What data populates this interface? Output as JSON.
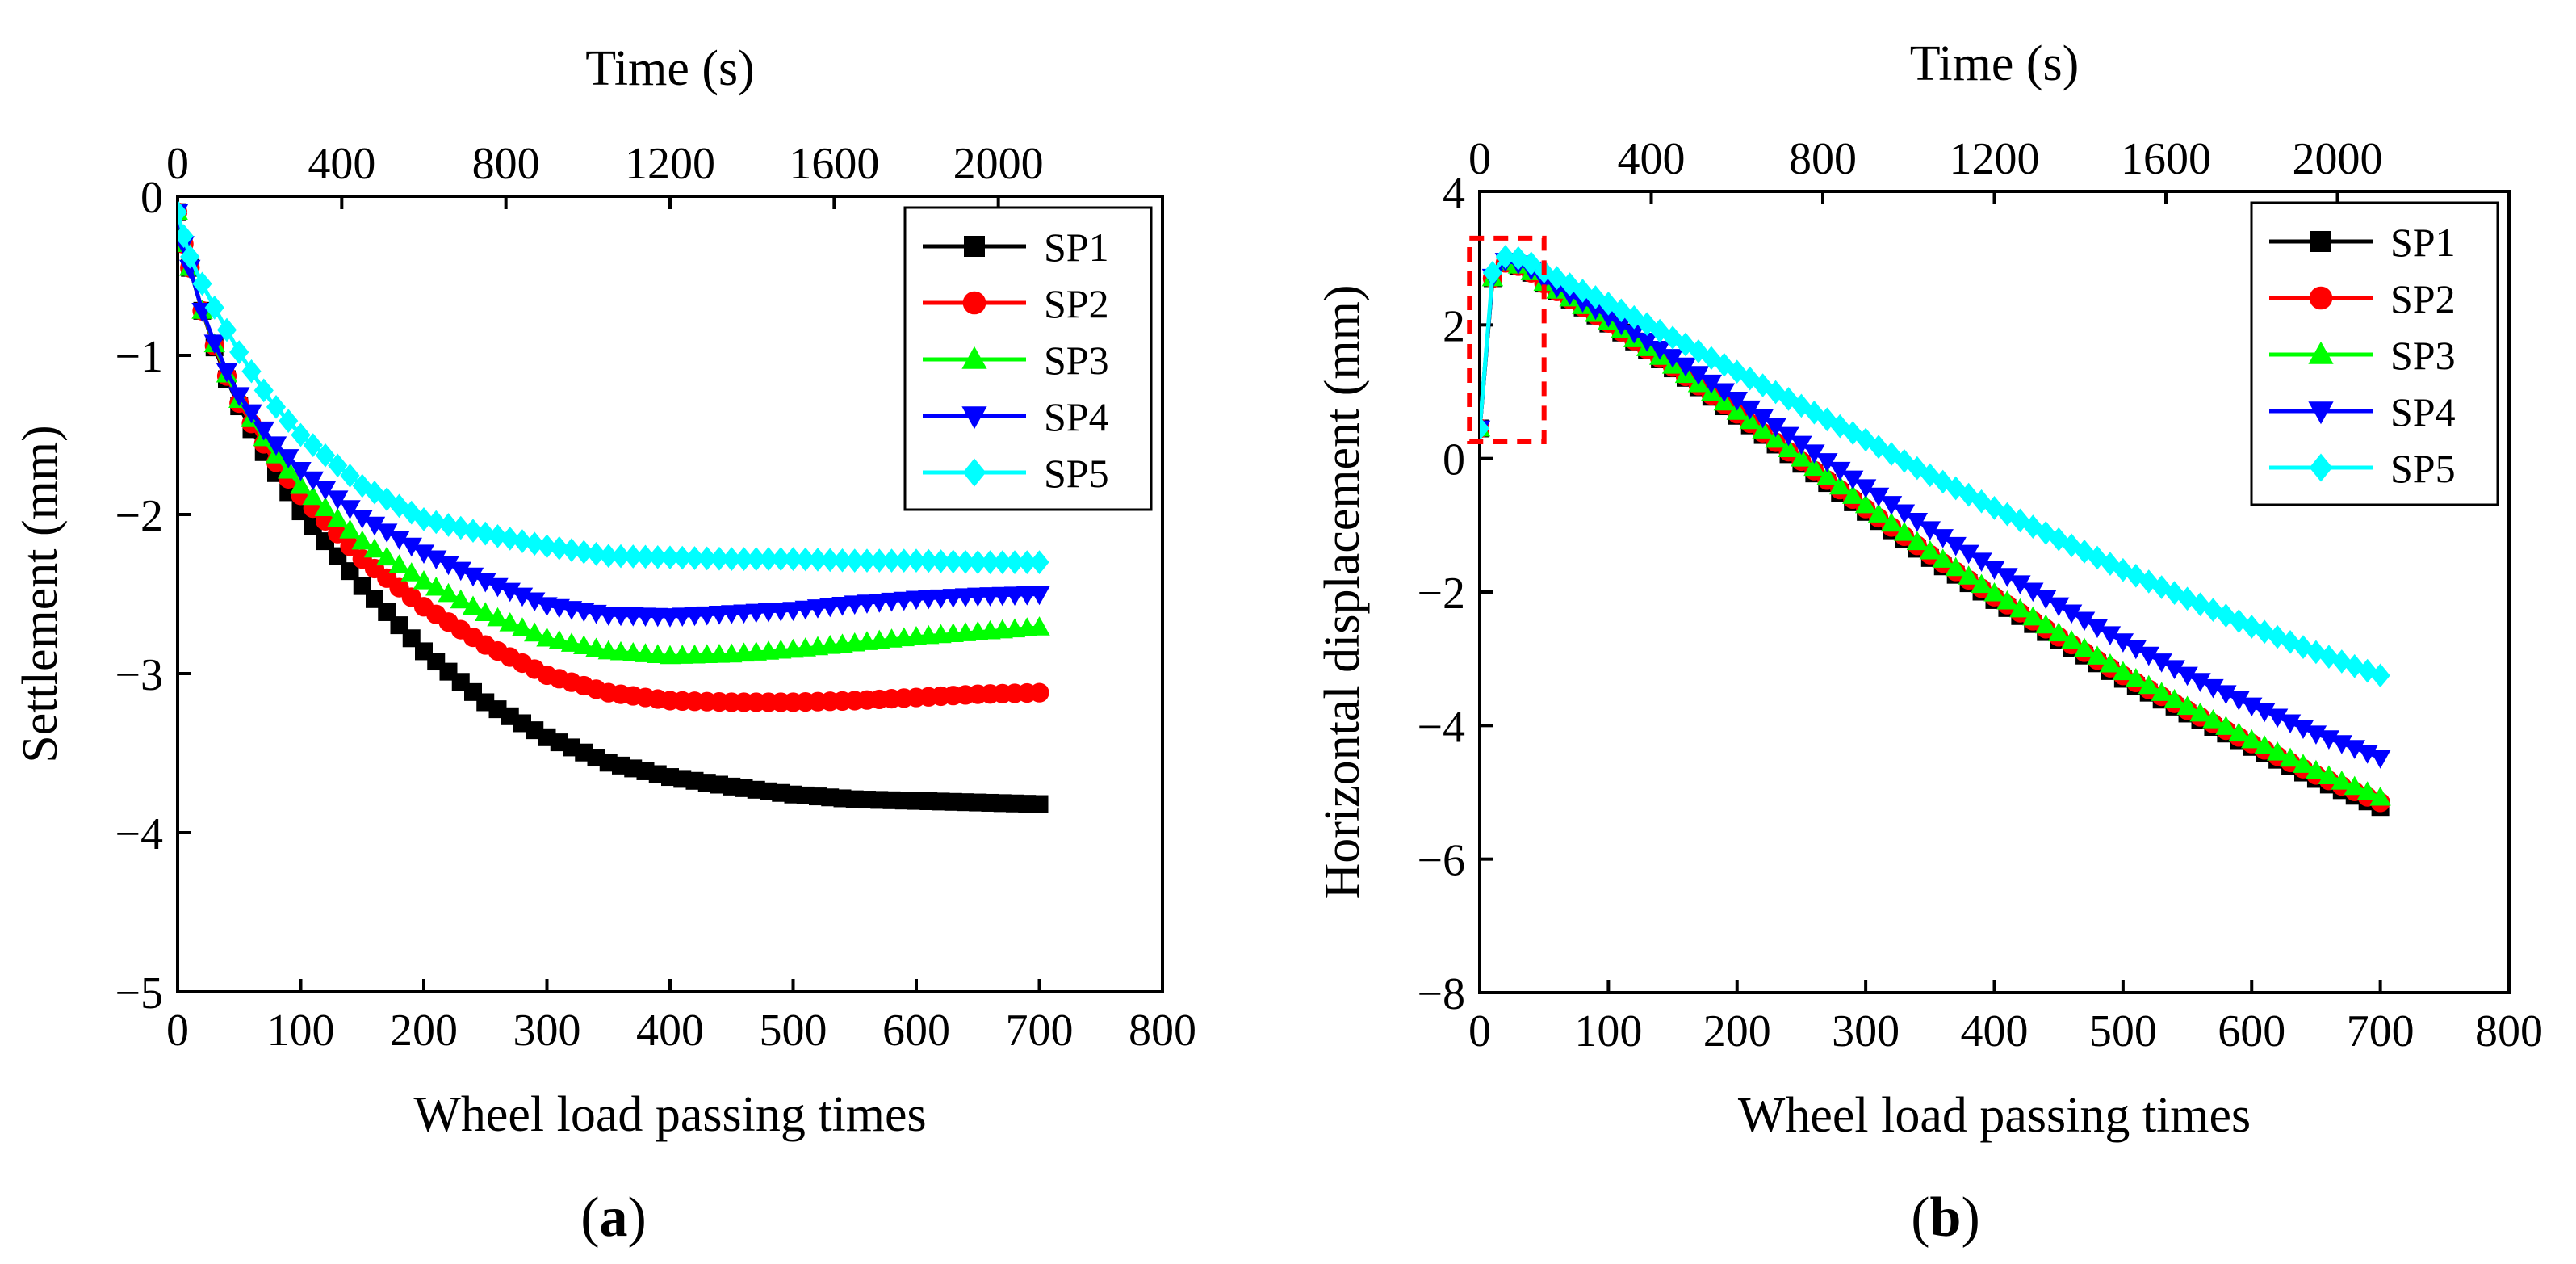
{
  "chart_data": [
    {
      "type": "line",
      "panel_label": "(a)",
      "panel_letter": "a",
      "xlabel": "Wheel load passing times",
      "ylabel": "Settlement (mm)",
      "x2label": "Time (s)",
      "xlim": [
        0,
        800
      ],
      "ylim": [
        -5,
        0
      ],
      "x2lim": [
        0,
        2400
      ],
      "xticks": [
        0,
        100,
        200,
        300,
        400,
        500,
        600,
        700,
        800
      ],
      "yticks": [
        0,
        -1,
        -2,
        -3,
        -4,
        -5
      ],
      "x2ticks": [
        0,
        400,
        800,
        1200,
        1600,
        2000
      ],
      "ytick_labels": [
        "0",
        "−1",
        "−2",
        "−3",
        "−4",
        "−5"
      ],
      "legend_position": "top-right",
      "grid": false,
      "series": [
        {
          "name": "SP1",
          "color": "#000000",
          "marker": "square",
          "points": [
            [
              0,
              -0.1
            ],
            [
              5,
              -0.3
            ],
            [
              10,
              -0.45
            ],
            [
              20,
              -0.72
            ],
            [
              30,
              -0.95
            ],
            [
              40,
              -1.15
            ],
            [
              50,
              -1.32
            ],
            [
              75,
              -1.68
            ],
            [
              100,
              -1.98
            ],
            [
              150,
              -2.45
            ],
            [
              200,
              -2.86
            ],
            [
              250,
              -3.18
            ],
            [
              300,
              -3.4
            ],
            [
              350,
              -3.56
            ],
            [
              400,
              -3.65
            ],
            [
              450,
              -3.71
            ],
            [
              500,
              -3.76
            ],
            [
              550,
              -3.79
            ],
            [
              600,
              -3.8
            ],
            [
              650,
              -3.81
            ],
            [
              700,
              -3.82
            ]
          ]
        },
        {
          "name": "SP2",
          "color": "#ff0000",
          "marker": "circle",
          "points": [
            [
              0,
              -0.1
            ],
            [
              5,
              -0.3
            ],
            [
              10,
              -0.45
            ],
            [
              20,
              -0.72
            ],
            [
              30,
              -0.94
            ],
            [
              40,
              -1.13
            ],
            [
              50,
              -1.3
            ],
            [
              75,
              -1.62
            ],
            [
              100,
              -1.88
            ],
            [
              150,
              -2.28
            ],
            [
              200,
              -2.58
            ],
            [
              250,
              -2.82
            ],
            [
              300,
              -3.01
            ],
            [
              350,
              -3.12
            ],
            [
              400,
              -3.17
            ],
            [
              450,
              -3.18
            ],
            [
              500,
              -3.18
            ],
            [
              550,
              -3.17
            ],
            [
              600,
              -3.15
            ],
            [
              650,
              -3.13
            ],
            [
              700,
              -3.12
            ]
          ]
        },
        {
          "name": "SP3",
          "color": "#00ff00",
          "marker": "triangle-up",
          "points": [
            [
              0,
              -0.1
            ],
            [
              5,
              -0.3
            ],
            [
              10,
              -0.45
            ],
            [
              20,
              -0.72
            ],
            [
              30,
              -0.93
            ],
            [
              40,
              -1.12
            ],
            [
              50,
              -1.28
            ],
            [
              75,
              -1.58
            ],
            [
              100,
              -1.82
            ],
            [
              150,
              -2.17
            ],
            [
              200,
              -2.42
            ],
            [
              250,
              -2.62
            ],
            [
              300,
              -2.78
            ],
            [
              350,
              -2.86
            ],
            [
              400,
              -2.89
            ],
            [
              450,
              -2.88
            ],
            [
              500,
              -2.85
            ],
            [
              550,
              -2.81
            ],
            [
              600,
              -2.77
            ],
            [
              650,
              -2.74
            ],
            [
              700,
              -2.71
            ]
          ]
        },
        {
          "name": "SP4",
          "color": "#0000ff",
          "marker": "triangle-down",
          "points": [
            [
              0,
              -0.1
            ],
            [
              5,
              -0.3
            ],
            [
              10,
              -0.45
            ],
            [
              20,
              -0.72
            ],
            [
              30,
              -0.92
            ],
            [
              40,
              -1.1
            ],
            [
              50,
              -1.25
            ],
            [
              75,
              -1.52
            ],
            [
              100,
              -1.72
            ],
            [
              150,
              -2.02
            ],
            [
              200,
              -2.24
            ],
            [
              250,
              -2.42
            ],
            [
              300,
              -2.57
            ],
            [
              350,
              -2.63
            ],
            [
              400,
              -2.64
            ],
            [
              450,
              -2.62
            ],
            [
              500,
              -2.6
            ],
            [
              550,
              -2.56
            ],
            [
              600,
              -2.53
            ],
            [
              650,
              -2.51
            ],
            [
              700,
              -2.5
            ]
          ]
        },
        {
          "name": "SP5",
          "color": "#00ffff",
          "marker": "diamond",
          "points": [
            [
              0,
              -0.1
            ],
            [
              5,
              -0.25
            ],
            [
              10,
              -0.38
            ],
            [
              20,
              -0.55
            ],
            [
              30,
              -0.7
            ],
            [
              40,
              -0.84
            ],
            [
              50,
              -0.98
            ],
            [
              75,
              -1.28
            ],
            [
              100,
              -1.5
            ],
            [
              150,
              -1.82
            ],
            [
              200,
              -2.03
            ],
            [
              250,
              -2.12
            ],
            [
              300,
              -2.2
            ],
            [
              350,
              -2.26
            ],
            [
              400,
              -2.27
            ],
            [
              450,
              -2.28
            ],
            [
              500,
              -2.28
            ],
            [
              550,
              -2.29
            ],
            [
              600,
              -2.29
            ],
            [
              650,
              -2.3
            ],
            [
              700,
              -2.3
            ]
          ]
        }
      ]
    },
    {
      "type": "line",
      "panel_label": "(b)",
      "panel_letter": "b",
      "xlabel": "Wheel load passing times",
      "ylabel": "Horizontal displacement (mm)",
      "x2label": "Time (s)",
      "xlim": [
        0,
        800
      ],
      "ylim": [
        -8,
        4
      ],
      "x2lim": [
        0,
        2400
      ],
      "xticks": [
        0,
        100,
        200,
        300,
        400,
        500,
        600,
        700,
        800
      ],
      "yticks": [
        4,
        2,
        0,
        -2,
        -4,
        -6,
        -8
      ],
      "x2ticks": [
        0,
        400,
        800,
        1200,
        1600,
        2000
      ],
      "ytick_labels": [
        "4",
        "2",
        "0",
        "−2",
        "−4",
        "−6",
        "−8"
      ],
      "legend_position": "top-right",
      "grid": false,
      "highlight_box": {
        "x": [
          -8,
          50
        ],
        "y": [
          0.25,
          3.3
        ],
        "color": "#ff0000",
        "style": "dashed"
      },
      "series": [
        {
          "name": "SP1",
          "color": "#000000",
          "marker": "square",
          "points": [
            [
              0,
              0.45
            ],
            [
              10,
              2.7
            ],
            [
              20,
              2.93
            ],
            [
              30,
              2.88
            ],
            [
              40,
              2.78
            ],
            [
              50,
              2.62
            ],
            [
              100,
              2.02
            ],
            [
              150,
              1.35
            ],
            [
              200,
              0.64
            ],
            [
              250,
              -0.08
            ],
            [
              300,
              -0.8
            ],
            [
              350,
              -1.49
            ],
            [
              400,
              -2.12
            ],
            [
              450,
              -2.72
            ],
            [
              500,
              -3.3
            ],
            [
              550,
              -3.82
            ],
            [
              600,
              -4.32
            ],
            [
              650,
              -4.8
            ],
            [
              700,
              -5.22
            ]
          ]
        },
        {
          "name": "SP2",
          "color": "#ff0000",
          "marker": "circle",
          "points": [
            [
              0,
              0.45
            ],
            [
              10,
              2.7
            ],
            [
              20,
              2.93
            ],
            [
              30,
              2.88
            ],
            [
              40,
              2.78
            ],
            [
              50,
              2.62
            ],
            [
              100,
              2.03
            ],
            [
              150,
              1.37
            ],
            [
              200,
              0.67
            ],
            [
              250,
              -0.04
            ],
            [
              300,
              -0.75
            ],
            [
              350,
              -1.44
            ],
            [
              400,
              -2.07
            ],
            [
              450,
              -2.67
            ],
            [
              500,
              -3.25
            ],
            [
              550,
              -3.77
            ],
            [
              600,
              -4.27
            ],
            [
              650,
              -4.74
            ],
            [
              700,
              -5.15
            ]
          ]
        },
        {
          "name": "SP3",
          "color": "#00ff00",
          "marker": "triangle-up",
          "points": [
            [
              0,
              0.45
            ],
            [
              10,
              2.7
            ],
            [
              20,
              2.94
            ],
            [
              30,
              2.89
            ],
            [
              40,
              2.79
            ],
            [
              50,
              2.63
            ],
            [
              100,
              2.05
            ],
            [
              150,
              1.39
            ],
            [
              200,
              0.7
            ],
            [
              250,
              0.0
            ],
            [
              300,
              -0.7
            ],
            [
              350,
              -1.39
            ],
            [
              400,
              -2.02
            ],
            [
              450,
              -2.62
            ],
            [
              500,
              -3.2
            ],
            [
              550,
              -3.72
            ],
            [
              600,
              -4.22
            ],
            [
              650,
              -4.68
            ],
            [
              700,
              -5.08
            ]
          ]
        },
        {
          "name": "SP4",
          "color": "#0000ff",
          "marker": "triangle-down",
          "points": [
            [
              0,
              0.45
            ],
            [
              10,
              2.72
            ],
            [
              20,
              2.96
            ],
            [
              30,
              2.92
            ],
            [
              40,
              2.83
            ],
            [
              50,
              2.68
            ],
            [
              100,
              2.13
            ],
            [
              150,
              1.52
            ],
            [
              200,
              0.88
            ],
            [
              250,
              0.22
            ],
            [
              300,
              -0.43
            ],
            [
              350,
              -1.06
            ],
            [
              400,
              -1.65
            ],
            [
              450,
              -2.2
            ],
            [
              500,
              -2.74
            ],
            [
              550,
              -3.24
            ],
            [
              600,
              -3.7
            ],
            [
              650,
              -4.12
            ],
            [
              700,
              -4.48
            ]
          ]
        },
        {
          "name": "SP5",
          "color": "#00ffff",
          "marker": "diamond",
          "points": [
            [
              0,
              0.45
            ],
            [
              10,
              2.78
            ],
            [
              20,
              3.02
            ],
            [
              30,
              3.0
            ],
            [
              40,
              2.92
            ],
            [
              50,
              2.8
            ],
            [
              100,
              2.32
            ],
            [
              150,
              1.81
            ],
            [
              200,
              1.3
            ],
            [
              250,
              0.79
            ],
            [
              300,
              0.28
            ],
            [
              350,
              -0.25
            ],
            [
              400,
              -0.74
            ],
            [
              450,
              -1.21
            ],
            [
              500,
              -1.67
            ],
            [
              550,
              -2.1
            ],
            [
              600,
              -2.52
            ],
            [
              650,
              -2.9
            ],
            [
              700,
              -3.25
            ]
          ]
        }
      ]
    }
  ]
}
